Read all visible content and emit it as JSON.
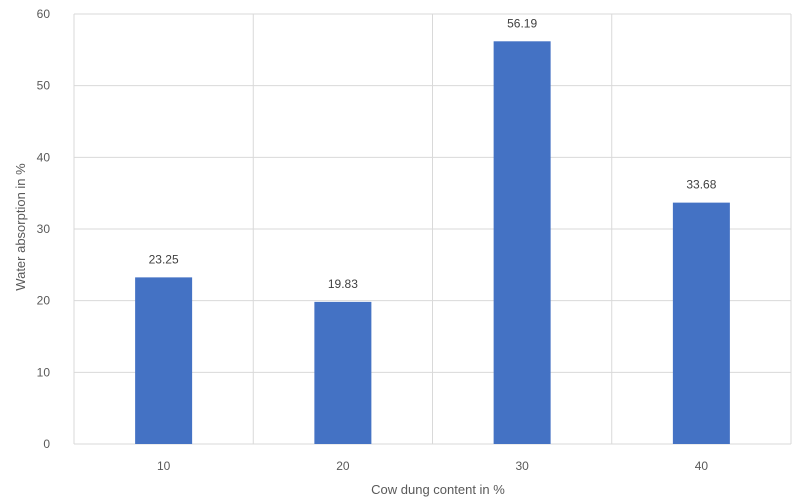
{
  "chart_data": {
    "type": "bar",
    "title": "",
    "xlabel": "Cow dung content in %",
    "ylabel": "Water absorption in %",
    "categories": [
      "10",
      "20",
      "30",
      "40"
    ],
    "values": [
      23.25,
      19.83,
      56.19,
      33.68
    ],
    "data_labels": [
      "23.25",
      "19.83",
      "56.19",
      "33.68"
    ],
    "ylim": [
      0,
      60
    ],
    "yticks": [
      "0",
      "10",
      "20",
      "30",
      "40",
      "50",
      "60"
    ],
    "grid": "vertical and horizontal",
    "legend": "none",
    "bar_color": "#4472C4"
  }
}
